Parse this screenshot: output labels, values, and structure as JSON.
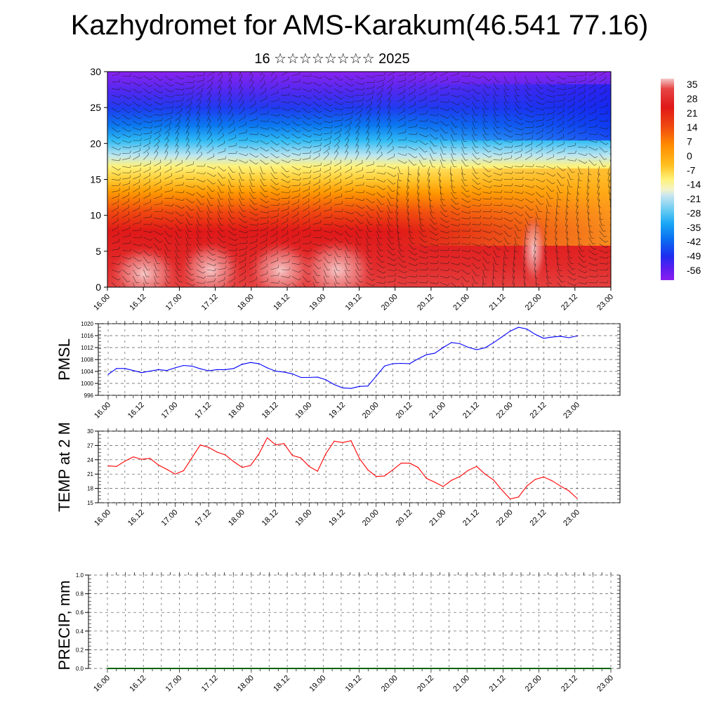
{
  "title": "Kazhydromet for AMS-Karakum(46.541 77.16)",
  "subtitle": "16 ☆☆☆☆☆☆☆☆ 2025",
  "colors": {
    "pmsl_line": "#0000ff",
    "temp_line": "#ff0000",
    "precip_line": "#006400",
    "colormap": [
      "#f4b8b8",
      "#e64040",
      "#e02020",
      "#ff5a00",
      "#ff9900",
      "#ffcc33",
      "#fff27a",
      "#cfe6f0",
      "#60c8f0",
      "#1aa6f5",
      "#0a6cf0",
      "#1e2ef0",
      "#5a1ef0",
      "#8a1ef0"
    ]
  },
  "chart_data": [
    {
      "id": "profile",
      "type": "heatmap",
      "ylim": [
        0,
        30
      ],
      "yticks": [
        "0",
        "5",
        "10",
        "15",
        "20",
        "25",
        "30"
      ],
      "xticks": [
        "16.00",
        "16.12",
        "17.00",
        "17.12",
        "18.00",
        "18.12",
        "19.00",
        "19.12",
        "20.00",
        "20.12",
        "21.00",
        "21.12",
        "22.00",
        "22.12",
        "23.00"
      ],
      "colorbar_labels": [
        "35",
        "28",
        "21",
        "14",
        "7",
        "0",
        "-7",
        "-14",
        "-21",
        "-28",
        "-35",
        "-42",
        "-49",
        "-56"
      ]
    },
    {
      "id": "pmsl",
      "type": "line",
      "ylabel": "PMSL",
      "ylim": [
        996,
        1020
      ],
      "yticks": [
        "996",
        "1000",
        "1004",
        "1008",
        "1012",
        "1016",
        "1020"
      ],
      "xticks": [
        "16.00",
        "16.12",
        "17.00",
        "17.12",
        "18.00",
        "18.12",
        "19.00",
        "19.12",
        "20.00",
        "20.12",
        "21.00",
        "21.12",
        "22.00",
        "22.12",
        "23.00"
      ],
      "x": [
        0,
        3,
        6,
        9,
        12,
        15,
        18,
        21,
        24,
        27,
        30,
        33,
        36,
        39,
        42,
        45,
        48,
        51,
        54,
        57,
        60,
        63,
        66,
        69,
        72,
        75,
        78,
        81,
        84,
        87,
        90,
        93,
        96,
        99,
        102,
        105,
        108,
        111,
        114,
        117,
        120,
        123,
        126,
        129,
        132,
        135,
        138,
        141,
        144,
        147,
        150,
        153,
        156,
        159,
        162,
        165,
        168
      ],
      "values": [
        1003,
        1005,
        1005,
        1004.3,
        1003.6,
        1004.1,
        1004.6,
        1004.3,
        1005.2,
        1006,
        1005.8,
        1004.9,
        1004.2,
        1004.6,
        1004.6,
        1005,
        1006.4,
        1007,
        1006.6,
        1005.2,
        1004.1,
        1003.8,
        1003.2,
        1002,
        1002,
        1002.1,
        1001.2,
        999.6,
        998.5,
        998.3,
        999,
        999.1,
        1002.4,
        1005.8,
        1006.6,
        1006.7,
        1006.6,
        1008.2,
        1009.6,
        1010.1,
        1012,
        1013.7,
        1013.3,
        1012.1,
        1011.3,
        1011.9,
        1013.6,
        1015.5,
        1017.5,
        1018.8,
        1018.2,
        1016.4,
        1015.1,
        1015.5,
        1015.8,
        1015.3,
        1015.9
      ]
    },
    {
      "id": "temp",
      "type": "line",
      "ylabel": "TEMP at 2 M",
      "ylim": [
        15,
        30
      ],
      "yticks": [
        "15",
        "18",
        "21",
        "24",
        "27",
        "30"
      ],
      "xticks": [
        "16.00",
        "16.12",
        "17.00",
        "17.12",
        "18.00",
        "18.12",
        "19.00",
        "19.12",
        "20.00",
        "20.12",
        "21.00",
        "21.12",
        "22.00",
        "22.12",
        "23.00"
      ],
      "x": [
        0,
        3,
        6,
        9,
        12,
        15,
        18,
        21,
        24,
        27,
        30,
        33,
        36,
        39,
        42,
        45,
        48,
        51,
        54,
        57,
        60,
        63,
        66,
        69,
        72,
        75,
        78,
        81,
        84,
        87,
        90,
        93,
        96,
        99,
        102,
        105,
        108,
        111,
        114,
        117,
        120,
        123,
        126,
        129,
        132,
        135,
        138,
        141,
        144,
        147,
        150,
        153,
        156,
        159,
        162,
        165,
        168
      ],
      "values": [
        22.7,
        22.6,
        23.7,
        24.6,
        24.1,
        24.3,
        22.9,
        22,
        21,
        21.7,
        24.4,
        27.1,
        26.6,
        25.6,
        25,
        23.6,
        22.4,
        22.8,
        25.2,
        28.6,
        27.1,
        27.4,
        24.9,
        24.4,
        22.6,
        21.6,
        25.3,
        27.9,
        27.6,
        28,
        24.3,
        21.9,
        20.5,
        20.6,
        21.9,
        23.3,
        23.3,
        22.4,
        20.1,
        19.3,
        18.4,
        19.7,
        20.5,
        21.8,
        22.6,
        21,
        19.8,
        17.7,
        15.8,
        16.2,
        18.5,
        19.9,
        20.4,
        19.6,
        18.5,
        17.5,
        15.9
      ]
    },
    {
      "id": "precip",
      "type": "line",
      "ylabel": "PRECIP, mm",
      "ylim": [
        0,
        1
      ],
      "yticks": [
        "0.0",
        "0.2",
        "0.4",
        "0.6",
        "0.8",
        "1.0"
      ],
      "xticks": [
        "16.00",
        "16.12",
        "17.00",
        "17.12",
        "18.00",
        "18.12",
        "19.00",
        "19.12",
        "20.00",
        "20.12",
        "21.00",
        "21.12",
        "22.00",
        "22.12",
        "23.00"
      ],
      "x": [
        0,
        168
      ],
      "values": [
        0,
        0
      ]
    }
  ]
}
